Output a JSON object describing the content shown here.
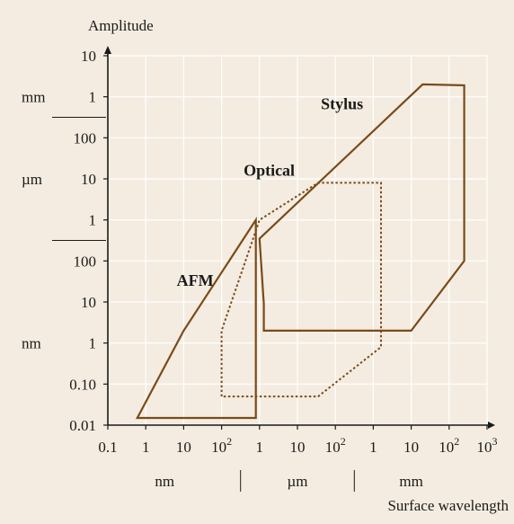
{
  "chart_data": {
    "type": "area",
    "xlabel": "Surface wavelength",
    "ylabel": "Amplitude",
    "x_scale": "log",
    "y_scale": "log",
    "xlim_m": [
      1e-10,
      1
    ],
    "ylim_m": [
      1e-11,
      0.01
    ],
    "grid": true,
    "x_ticks": [
      {
        "value_m": 1e-10,
        "base": "0.1",
        "sup": ""
      },
      {
        "value_m": 1e-09,
        "base": "1",
        "sup": ""
      },
      {
        "value_m": 1e-08,
        "base": "10",
        "sup": ""
      },
      {
        "value_m": 1e-07,
        "base": "10",
        "sup": "2"
      },
      {
        "value_m": 1e-06,
        "base": "1",
        "sup": ""
      },
      {
        "value_m": 1e-05,
        "base": "10",
        "sup": ""
      },
      {
        "value_m": 0.0001,
        "base": "10",
        "sup": "2"
      },
      {
        "value_m": 0.001,
        "base": "1",
        "sup": ""
      },
      {
        "value_m": 0.01,
        "base": "10",
        "sup": ""
      },
      {
        "value_m": 0.1,
        "base": "10",
        "sup": "2"
      },
      {
        "value_m": 1,
        "base": "10",
        "sup": "3"
      }
    ],
    "y_ticks": [
      {
        "value_m": 1e-11,
        "label": "0.01"
      },
      {
        "value_m": 1e-10,
        "label": "0.10"
      },
      {
        "value_m": 1e-09,
        "label": "1"
      },
      {
        "value_m": 1e-08,
        "label": "10"
      },
      {
        "value_m": 1e-07,
        "label": "100"
      },
      {
        "value_m": 1e-06,
        "label": "1"
      },
      {
        "value_m": 1e-05,
        "label": "10"
      },
      {
        "value_m": 0.0001,
        "label": "100"
      },
      {
        "value_m": 0.001,
        "label": "1"
      },
      {
        "value_m": 0.01,
        "label": "10"
      }
    ],
    "x_unit_groups": [
      {
        "label": "nm",
        "from_m": 1e-10,
        "to_m": 1e-07
      },
      {
        "label": "µm",
        "from_m": 1e-06,
        "to_m": 0.0001
      },
      {
        "label": "mm",
        "from_m": 0.001,
        "to_m": 0.1
      }
    ],
    "y_unit_groups": [
      {
        "label": "mm",
        "at_m": 0.001
      },
      {
        "label": "µm",
        "at_m": 1e-05
      },
      {
        "label": "nm",
        "at_m": 1e-09
      }
    ],
    "series": [
      {
        "name": "AFM",
        "style": "solid",
        "polygon_m": [
          [
            6e-10,
            1.5e-11
          ],
          [
            1e-08,
            2e-09
          ],
          [
            8e-07,
            1e-06
          ],
          [
            8e-07,
            1.5e-11
          ]
        ],
        "label_at_m": [
          2e-08,
          2.5e-08
        ]
      },
      {
        "name": "Optical",
        "style": "dotted",
        "polygon_m": [
          [
            1e-07,
            5e-11
          ],
          [
            1e-07,
            2e-09
          ],
          [
            1e-06,
            1e-06
          ],
          [
            3.5e-05,
            8e-06
          ],
          [
            0.0016,
            8e-06
          ],
          [
            0.0016,
            8e-10
          ],
          [
            3.5e-05,
            5e-11
          ]
        ],
        "label_at_m": [
          1.8e-06,
          1.2e-05
        ]
      },
      {
        "name": "Stylus",
        "style": "solid",
        "polygon_m": [
          [
            1.3e-06,
            2e-09
          ],
          [
            1.3e-06,
            9e-09
          ],
          [
            1e-06,
            3.5e-07
          ],
          [
            0.02,
            0.002
          ],
          [
            0.25,
            0.0019
          ],
          [
            0.25,
            1e-07
          ],
          [
            0.01,
            2e-09
          ]
        ],
        "label_at_m": [
          0.00015,
          0.0005
        ]
      }
    ],
    "colors": {
      "background": "#f4ece0",
      "grid": "#ffffff",
      "outline": "#7a4a1a",
      "axis": "#1a1a1a"
    }
  }
}
